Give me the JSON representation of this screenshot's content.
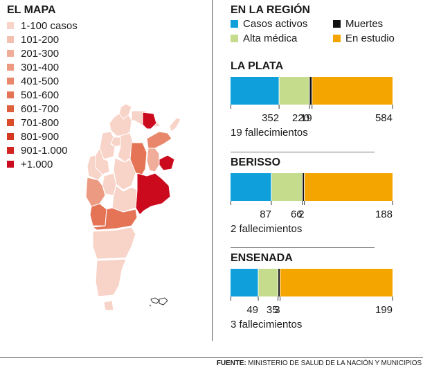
{
  "map": {
    "title": "EL MAPA",
    "legend": [
      {
        "label": "1-100 casos",
        "color": "#f8d3c8"
      },
      {
        "label": "101-200",
        "color": "#f4c0b0"
      },
      {
        "label": "201-300",
        "color": "#f0ad99"
      },
      {
        "label": "301-400",
        "color": "#ec9a82"
      },
      {
        "label": "401-500",
        "color": "#e8876b"
      },
      {
        "label": "501-600",
        "color": "#e47455"
      },
      {
        "label": "601-700",
        "color": "#df603f"
      },
      {
        "label": "701-800",
        "color": "#da4c2b"
      },
      {
        "label": "801-900",
        "color": "#d53820"
      },
      {
        "label": "901-1.000",
        "color": "#d22420"
      },
      {
        "label": "+1.000",
        "color": "#cc0a1e"
      }
    ]
  },
  "region": {
    "title": "EN LA REGIÓN",
    "legend": [
      {
        "label": "Casos activos",
        "color": "#0fa0dc"
      },
      {
        "label": "Muertes",
        "color": "#111111"
      },
      {
        "label": "Alta médica",
        "color": "#c4dc8c"
      },
      {
        "label": "En estudio",
        "color": "#f5a500"
      }
    ]
  },
  "chart_data": {
    "type": "bar",
    "stacked": true,
    "orientation": "horizontal",
    "title": "EN LA REGIÓN",
    "categories": [
      "LA PLATA",
      "BERISSO",
      "ENSENADA"
    ],
    "series": [
      {
        "name": "Casos activos",
        "values": [
          352,
          87,
          49
        ],
        "color": "#0fa0dc"
      },
      {
        "name": "Alta médica",
        "values": [
          220,
          66,
          35
        ],
        "color": "#c4dc8c"
      },
      {
        "name": "Muertes",
        "values": [
          19,
          2,
          3
        ],
        "color": "#111111"
      },
      {
        "name": "En estudio",
        "values": [
          584,
          188,
          199
        ],
        "color": "#f5a500"
      }
    ],
    "footnotes": [
      "19 fallecimientos",
      "2 fallecimientos",
      "3 fallecimientos"
    ]
  },
  "source": {
    "label": "FUENTE:",
    "text": "MINISTERIO DE SALUD DE LA NACIÓN Y MUNICIPIOS"
  }
}
